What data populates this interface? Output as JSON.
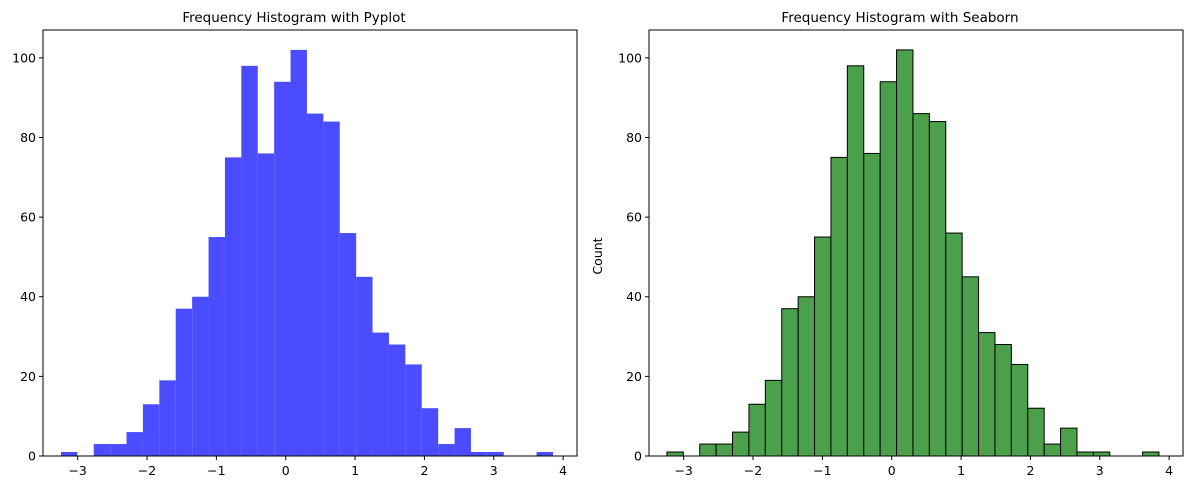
{
  "chart_data": [
    {
      "type": "bar",
      "title": "Frequency Histogram with Pyplot",
      "xlabel": "",
      "ylabel": "",
      "xlim": [
        -3.5,
        4.2
      ],
      "ylim": [
        0,
        107
      ],
      "xticks": [
        -3,
        -2,
        -1,
        0,
        1,
        2,
        3,
        4
      ],
      "xtick_labels": [
        "−3",
        "−2",
        "−1",
        "0",
        "1",
        "2",
        "3",
        "4"
      ],
      "yticks": [
        0,
        20,
        40,
        60,
        80,
        100
      ],
      "ytick_labels": [
        "0",
        "20",
        "40",
        "60",
        "80",
        "100"
      ],
      "grid": false,
      "bar_color": "#4b4bff",
      "bar_edge": "none",
      "bin_start": -3.2414,
      "bin_width": 0.2365,
      "counts": [
        1,
        0,
        3,
        3,
        6,
        13,
        19,
        37,
        40,
        55,
        75,
        98,
        76,
        94,
        102,
        86,
        84,
        56,
        45,
        31,
        28,
        23,
        12,
        3,
        7,
        1,
        1,
        0,
        0,
        1
      ]
    },
    {
      "type": "bar",
      "title": "Frequency Histogram with Seaborn",
      "xlabel": "",
      "ylabel": "Count",
      "xlim": [
        -3.5,
        4.2
      ],
      "ylim": [
        0,
        107
      ],
      "xticks": [
        -3,
        -2,
        -1,
        0,
        1,
        2,
        3,
        4
      ],
      "xtick_labels": [
        "−3",
        "−2",
        "−1",
        "0",
        "1",
        "2",
        "3",
        "4"
      ],
      "yticks": [
        0,
        20,
        40,
        60,
        80,
        100
      ],
      "ytick_labels": [
        "0",
        "20",
        "40",
        "60",
        "80",
        "100"
      ],
      "grid": false,
      "bar_color": "#4ca04c",
      "bar_edge": "#000000",
      "bin_start": -3.2414,
      "bin_width": 0.2365,
      "counts": [
        1,
        0,
        3,
        3,
        6,
        13,
        19,
        37,
        40,
        55,
        75,
        98,
        76,
        94,
        102,
        86,
        84,
        56,
        45,
        31,
        28,
        23,
        12,
        3,
        7,
        1,
        1,
        0,
        0,
        1
      ]
    }
  ]
}
